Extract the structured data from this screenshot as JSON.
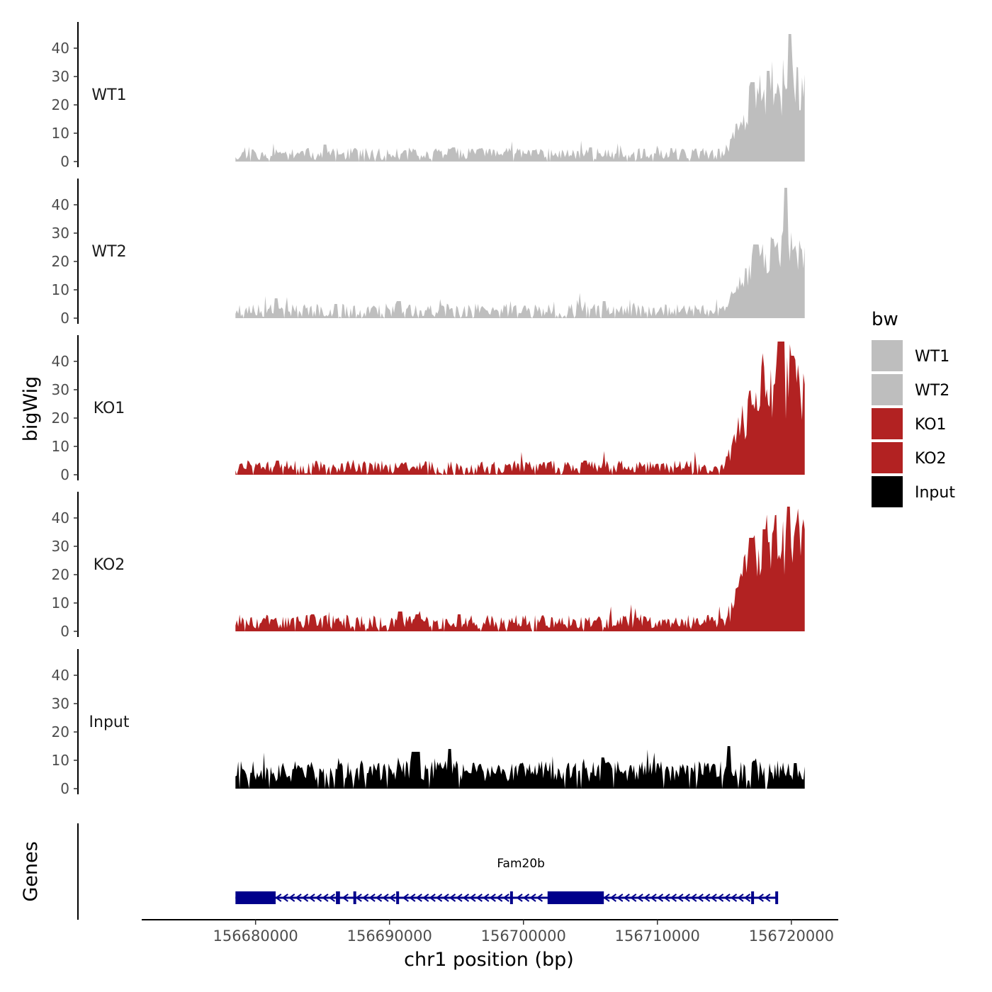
{
  "chart_data": {
    "type": "area",
    "title": "",
    "xlabel": "chr1 position (bp)",
    "ylabel": "bigWig",
    "genes_label": "Genes",
    "xlim": [
      156671500,
      156723500
    ],
    "ylim": [
      0,
      48
    ],
    "data_range": [
      156678500,
      156721000
    ],
    "x_ticks": [
      156680000,
      156690000,
      156700000,
      156710000,
      156720000
    ],
    "x_tick_labels": [
      "156680000",
      "156690000",
      "156700000",
      "156710000",
      "156720000"
    ],
    "y_ticks": [
      0,
      10,
      20,
      30,
      40
    ],
    "y_tick_labels": [
      "0",
      "10",
      "20",
      "30",
      "40"
    ],
    "legend": {
      "title": "bw",
      "position": "right",
      "entries": [
        {
          "label": "WT1",
          "color": "#BEBEBE"
        },
        {
          "label": "WT2",
          "color": "#BEBEBE"
        },
        {
          "label": "KO1",
          "color": "#B22222"
        },
        {
          "label": "KO2",
          "color": "#B22222"
        },
        {
          "label": "Input",
          "color": "#000000"
        }
      ]
    },
    "series": [
      {
        "name": "WT1",
        "color": "#BEBEBE",
        "baseline": 2,
        "noise": 2.2,
        "peak": 26,
        "seed": 11,
        "spikes": [
          [
            156685200,
            6
          ],
          [
            156694800,
            5
          ],
          [
            156700800,
            4
          ],
          [
            156705000,
            5
          ],
          [
            156719900,
            45
          ],
          [
            156718300,
            32
          ],
          [
            156717100,
            28
          ]
        ]
      },
      {
        "name": "WT2",
        "color": "#BEBEBE",
        "baseline": 2,
        "noise": 2.4,
        "peak": 22,
        "seed": 23,
        "spikes": [
          [
            156681500,
            7
          ],
          [
            156686000,
            5
          ],
          [
            156690700,
            6
          ],
          [
            156706000,
            6
          ],
          [
            156719600,
            46
          ],
          [
            156718600,
            28
          ],
          [
            156717300,
            26
          ]
        ]
      },
      {
        "name": "KO1",
        "color": "#B22222",
        "baseline": 2,
        "noise": 2.4,
        "peak": 34,
        "seed": 37,
        "spikes": [
          [
            156681600,
            5
          ],
          [
            156688100,
            4
          ],
          [
            156704600,
            5
          ],
          [
            156719100,
            47
          ],
          [
            156719400,
            47
          ],
          [
            156720100,
            42
          ],
          [
            156717900,
            38
          ]
        ]
      },
      {
        "name": "KO2",
        "color": "#B22222",
        "baseline": 2.5,
        "noise": 2.6,
        "peak": 32,
        "seed": 53,
        "spikes": [
          [
            156684300,
            6
          ],
          [
            156690800,
            7
          ],
          [
            156692100,
            6
          ],
          [
            156695200,
            6
          ],
          [
            156719800,
            44
          ],
          [
            156718000,
            36
          ],
          [
            156717000,
            33
          ]
        ]
      },
      {
        "name": "Input",
        "color": "#000000",
        "baseline": 5,
        "noise": 3.8,
        "peak": 0,
        "seed": 71,
        "spikes": [
          [
            156691800,
            13
          ],
          [
            156692200,
            13
          ],
          [
            156694500,
            14
          ],
          [
            156705900,
            11
          ],
          [
            156715300,
            15
          ],
          [
            156720300,
            9
          ]
        ]
      }
    ],
    "gene": {
      "name": "Fam20b",
      "color": "#00008B",
      "strand": "-",
      "start": 156678500,
      "end": 156719000,
      "exons": [
        [
          156678500,
          156681500
        ],
        [
          156686000,
          156686300
        ],
        [
          156687300,
          156687500
        ],
        [
          156690500,
          156690600
        ],
        [
          156699000,
          156699100
        ],
        [
          156701800,
          156706000
        ],
        [
          156717000,
          156717100
        ],
        [
          156718800,
          156719000
        ]
      ]
    }
  }
}
